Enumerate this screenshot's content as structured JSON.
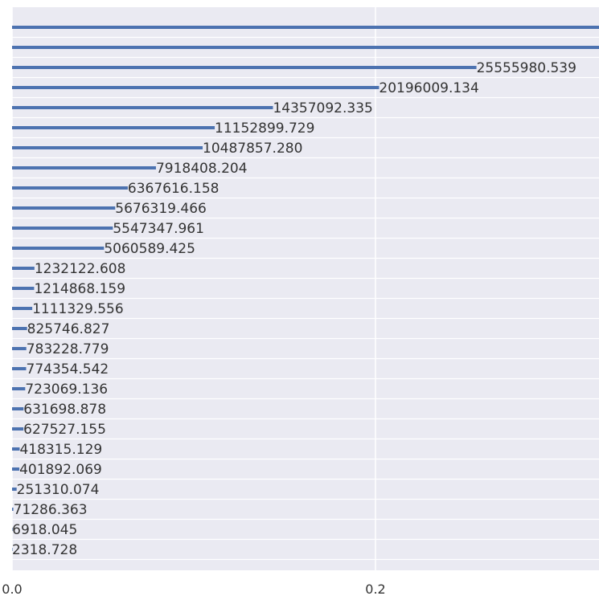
{
  "chart_data": {
    "type": "bar",
    "orientation": "horizontal",
    "series": [
      {
        "values": [
          null,
          null,
          25555980.539,
          20196009.134,
          14357092.335,
          11152899.729,
          10487857.28,
          7918408.204,
          6367616.158,
          5676319.466,
          5547347.961,
          5060589.425,
          1232122.608,
          1214868.159,
          1111329.556,
          825746.827,
          783228.779,
          774354.542,
          723069.136,
          631698.878,
          627527.155,
          418315.129,
          401892.069,
          251310.074,
          71286.363,
          6918.045,
          2318.728
        ],
        "labels": [
          "",
          "",
          "25555980.539",
          "20196009.134",
          "14357092.335",
          "11152899.729",
          "10487857.280",
          "7918408.204",
          "6367616.158",
          "5676319.466",
          "5547347.961",
          "5060589.425",
          "1232122.608",
          "1214868.159",
          "1111329.556",
          "825746.827",
          "783228.779",
          "774354.542",
          "723069.136",
          "631698.878",
          "627527.155",
          "418315.129",
          "401892.069",
          "251310.074",
          "71286.363",
          "6918.045",
          "2318.728"
        ]
      }
    ],
    "x_ticks": [
      "0.0",
      "0.2"
    ],
    "x_tick_values": [
      0,
      20000000
    ],
    "xlim": [
      0,
      32500000
    ],
    "grid": true,
    "bar_color": "#4c72b0",
    "background_color": "#eaeaf2",
    "grid_color": "#ffffff"
  }
}
